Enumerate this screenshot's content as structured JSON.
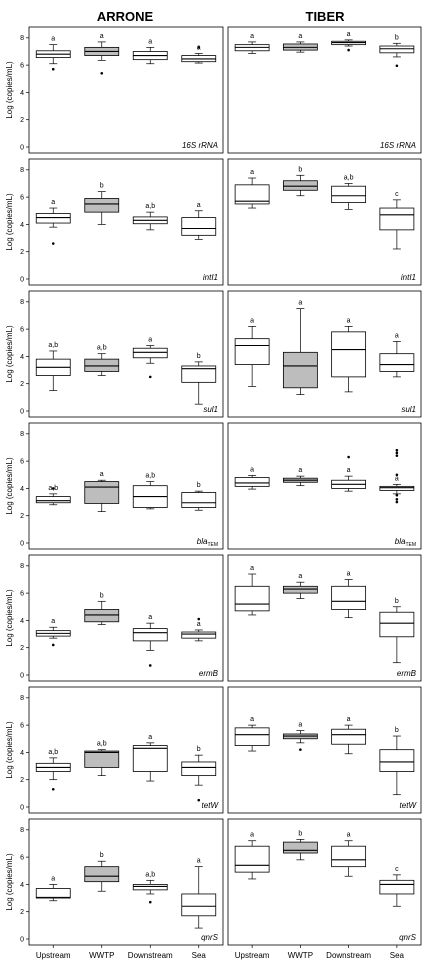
{
  "chart_data": {
    "type": "boxplot",
    "columns": [
      "ARRONE",
      "TIBER"
    ],
    "categories": [
      "Upstream",
      "WWTP",
      "Downstream",
      "Sea"
    ],
    "ylabel": "Log (copies/mL)",
    "ylim": [
      0,
      8.5
    ],
    "yticks": [
      0,
      2,
      4,
      6,
      8
    ],
    "fill_colors": [
      "#ffffff",
      "#bdbdbd",
      "#ffffff",
      "#ffffff"
    ],
    "rows": [
      {
        "gene": "16S rRNA",
        "panels": [
          {
            "site": "ARRONE",
            "boxes": [
              {
                "min": 6.1,
                "q1": 6.55,
                "median": 6.8,
                "q3": 7.05,
                "max": 7.5,
                "outliers": [
                  5.7
                ],
                "letter": "a"
              },
              {
                "min": 6.35,
                "q1": 6.7,
                "median": 7.0,
                "q3": 7.3,
                "max": 7.7,
                "outliers": [
                  5.4
                ],
                "letter": "a"
              },
              {
                "min": 6.1,
                "q1": 6.4,
                "median": 6.7,
                "q3": 7.0,
                "max": 7.3,
                "outliers": [],
                "letter": "a"
              },
              {
                "min": 6.15,
                "q1": 6.25,
                "median": 6.45,
                "q3": 6.7,
                "max": 6.85,
                "outliers": [
                  7.3
                ],
                "letter": "a"
              }
            ]
          },
          {
            "site": "TIBER",
            "boxes": [
              {
                "min": 6.85,
                "q1": 7.05,
                "median": 7.3,
                "q3": 7.5,
                "max": 7.7,
                "outliers": [],
                "letter": "a"
              },
              {
                "min": 6.95,
                "q1": 7.1,
                "median": 7.3,
                "q3": 7.55,
                "max": 7.7,
                "outliers": [],
                "letter": "a"
              },
              {
                "min": 7.4,
                "q1": 7.5,
                "median": 7.65,
                "q3": 7.75,
                "max": 7.85,
                "outliers": [
                  7.1
                ],
                "letter": "a"
              },
              {
                "min": 6.6,
                "q1": 6.9,
                "median": 7.2,
                "q3": 7.4,
                "max": 7.6,
                "outliers": [
                  5.95
                ],
                "letter": "b"
              }
            ]
          }
        ]
      },
      {
        "gene": "intI1",
        "panels": [
          {
            "site": "ARRONE",
            "boxes": [
              {
                "min": 3.8,
                "q1": 4.1,
                "median": 4.5,
                "q3": 4.8,
                "max": 5.2,
                "outliers": [
                  2.6
                ],
                "letter": "a"
              },
              {
                "min": 4.0,
                "q1": 4.9,
                "median": 5.5,
                "q3": 5.9,
                "max": 6.4,
                "outliers": [],
                "letter": "b"
              },
              {
                "min": 3.6,
                "q1": 4.05,
                "median": 4.3,
                "q3": 4.55,
                "max": 4.9,
                "outliers": [],
                "letter": "a,b"
              },
              {
                "min": 2.9,
                "q1": 3.2,
                "median": 3.7,
                "q3": 4.5,
                "max": 5.0,
                "outliers": [],
                "letter": "a"
              }
            ]
          },
          {
            "site": "TIBER",
            "boxes": [
              {
                "min": 5.2,
                "q1": 5.5,
                "median": 5.7,
                "q3": 6.9,
                "max": 7.4,
                "outliers": [],
                "letter": "a"
              },
              {
                "min": 6.1,
                "q1": 6.5,
                "median": 6.8,
                "q3": 7.2,
                "max": 7.6,
                "outliers": [],
                "letter": "b"
              },
              {
                "min": 5.1,
                "q1": 5.6,
                "median": 6.1,
                "q3": 6.8,
                "max": 7.0,
                "outliers": [],
                "letter": "a,b"
              },
              {
                "min": 2.2,
                "q1": 3.6,
                "median": 4.7,
                "q3": 5.2,
                "max": 5.8,
                "outliers": [],
                "letter": "c"
              }
            ]
          }
        ]
      },
      {
        "gene": "sul1",
        "panels": [
          {
            "site": "ARRONE",
            "boxes": [
              {
                "min": 1.5,
                "q1": 2.6,
                "median": 3.2,
                "q3": 3.8,
                "max": 4.4,
                "outliers": [],
                "letter": "a,b"
              },
              {
                "min": 2.6,
                "q1": 2.9,
                "median": 3.3,
                "q3": 3.8,
                "max": 4.2,
                "outliers": [],
                "letter": "a,b"
              },
              {
                "min": 3.5,
                "q1": 3.9,
                "median": 4.3,
                "q3": 4.6,
                "max": 4.8,
                "outliers": [
                  2.5
                ],
                "letter": "a"
              },
              {
                "min": 0.5,
                "q1": 2.1,
                "median": 3.1,
                "q3": 3.3,
                "max": 3.6,
                "outliers": [],
                "letter": "b"
              }
            ]
          },
          {
            "site": "TIBER",
            "boxes": [
              {
                "min": 1.8,
                "q1": 3.4,
                "median": 4.8,
                "q3": 5.3,
                "max": 6.2,
                "outliers": [],
                "letter": "a"
              },
              {
                "min": 1.2,
                "q1": 1.7,
                "median": 3.3,
                "q3": 4.3,
                "max": 7.5,
                "outliers": [],
                "letter": "a"
              },
              {
                "min": 1.4,
                "q1": 2.5,
                "median": 4.5,
                "q3": 5.8,
                "max": 6.2,
                "outliers": [],
                "letter": "a"
              },
              {
                "min": 2.5,
                "q1": 2.9,
                "median": 3.4,
                "q3": 4.2,
                "max": 5.1,
                "outliers": [],
                "letter": "a"
              }
            ]
          }
        ]
      },
      {
        "gene": "bla",
        "gene_sub": "TEM",
        "panels": [
          {
            "site": "ARRONE",
            "boxes": [
              {
                "min": 2.8,
                "q1": 2.95,
                "median": 3.1,
                "q3": 3.4,
                "max": 3.6,
                "outliers": [
                  4.0
                ],
                "letter": "a,b"
              },
              {
                "min": 2.3,
                "q1": 2.9,
                "median": 4.1,
                "q3": 4.5,
                "max": 4.6,
                "outliers": [],
                "letter": "a"
              },
              {
                "min": 2.5,
                "q1": 2.6,
                "median": 3.4,
                "q3": 4.2,
                "max": 4.5,
                "outliers": [],
                "letter": "a,b"
              },
              {
                "min": 2.4,
                "q1": 2.6,
                "median": 2.95,
                "q3": 3.7,
                "max": 3.8,
                "outliers": [],
                "letter": "b"
              }
            ]
          },
          {
            "site": "TIBER",
            "boxes": [
              {
                "min": 3.95,
                "q1": 4.15,
                "median": 4.4,
                "q3": 4.8,
                "max": 4.95,
                "outliers": [],
                "letter": "a"
              },
              {
                "min": 4.2,
                "q1": 4.45,
                "median": 4.6,
                "q3": 4.75,
                "max": 4.9,
                "outliers": [],
                "letter": "a"
              },
              {
                "min": 3.8,
                "q1": 4.0,
                "median": 4.3,
                "q3": 4.6,
                "max": 4.9,
                "outliers": [
                  6.3
                ],
                "letter": "a"
              },
              {
                "min": 3.6,
                "q1": 3.85,
                "median": 4.05,
                "q3": 4.15,
                "max": 4.3,
                "outliers": [
                  6.8,
                  6.6,
                  6.4,
                  5.0,
                  3.5,
                  3.2,
                  3.0
                ],
                "letter": "a"
              }
            ]
          }
        ]
      },
      {
        "gene": "ermB",
        "panels": [
          {
            "site": "ARRONE",
            "boxes": [
              {
                "min": 2.7,
                "q1": 2.85,
                "median": 3.05,
                "q3": 3.25,
                "max": 3.5,
                "outliers": [
                  2.2
                ],
                "letter": "a"
              },
              {
                "min": 3.7,
                "q1": 3.9,
                "median": 4.4,
                "q3": 4.8,
                "max": 5.4,
                "outliers": [],
                "letter": "b"
              },
              {
                "min": 1.8,
                "q1": 2.5,
                "median": 3.1,
                "q3": 3.4,
                "max": 3.8,
                "outliers": [
                  0.7
                ],
                "letter": "a"
              },
              {
                "min": 2.5,
                "q1": 2.7,
                "median": 3.0,
                "q3": 3.15,
                "max": 3.3,
                "outliers": [
                  4.1
                ],
                "letter": "a"
              }
            ]
          },
          {
            "site": "TIBER",
            "boxes": [
              {
                "min": 4.4,
                "q1": 4.7,
                "median": 5.2,
                "q3": 6.5,
                "max": 7.4,
                "outliers": [],
                "letter": "a"
              },
              {
                "min": 5.6,
                "q1": 6.0,
                "median": 6.3,
                "q3": 6.5,
                "max": 6.8,
                "outliers": [],
                "letter": "a"
              },
              {
                "min": 4.2,
                "q1": 4.8,
                "median": 5.4,
                "q3": 6.5,
                "max": 7.0,
                "outliers": [],
                "letter": "a"
              },
              {
                "min": 0.9,
                "q1": 2.8,
                "median": 3.8,
                "q3": 4.6,
                "max": 5.0,
                "outliers": [],
                "letter": "b"
              }
            ]
          }
        ]
      },
      {
        "gene": "tetW",
        "panels": [
          {
            "site": "ARRONE",
            "boxes": [
              {
                "min": 2.0,
                "q1": 2.6,
                "median": 2.9,
                "q3": 3.2,
                "max": 3.6,
                "outliers": [
                  1.3
                ],
                "letter": "a,b"
              },
              {
                "min": 2.3,
                "q1": 2.9,
                "median": 4.0,
                "q3": 4.1,
                "max": 4.2,
                "outliers": [],
                "letter": "a,b"
              },
              {
                "min": 1.9,
                "q1": 2.6,
                "median": 4.3,
                "q3": 4.5,
                "max": 4.7,
                "outliers": [],
                "letter": "a"
              },
              {
                "min": 1.6,
                "q1": 2.3,
                "median": 2.9,
                "q3": 3.3,
                "max": 3.8,
                "outliers": [
                  0.5
                ],
                "letter": "b"
              }
            ]
          },
          {
            "site": "TIBER",
            "boxes": [
              {
                "min": 4.1,
                "q1": 4.5,
                "median": 5.3,
                "q3": 5.8,
                "max": 6.0,
                "outliers": [],
                "letter": "a"
              },
              {
                "min": 4.7,
                "q1": 5.0,
                "median": 5.2,
                "q3": 5.35,
                "max": 5.6,
                "outliers": [
                  4.2
                ],
                "letter": "a"
              },
              {
                "min": 3.9,
                "q1": 4.6,
                "median": 5.3,
                "q3": 5.7,
                "max": 6.0,
                "outliers": [],
                "letter": "a"
              },
              {
                "min": 0.9,
                "q1": 2.6,
                "median": 3.3,
                "q3": 4.2,
                "max": 5.2,
                "outliers": [],
                "letter": "b"
              }
            ]
          }
        ]
      },
      {
        "gene": "qnrS",
        "panels": [
          {
            "site": "ARRONE",
            "boxes": [
              {
                "min": 2.8,
                "q1": 3.0,
                "median": 3.05,
                "q3": 3.7,
                "max": 4.0,
                "outliers": [],
                "letter": "a"
              },
              {
                "min": 3.5,
                "q1": 4.2,
                "median": 4.6,
                "q3": 5.3,
                "max": 5.7,
                "outliers": [],
                "letter": "b"
              },
              {
                "min": 3.3,
                "q1": 3.6,
                "median": 3.85,
                "q3": 4.0,
                "max": 4.3,
                "outliers": [
                  2.7
                ],
                "letter": "a,b"
              },
              {
                "min": 0.8,
                "q1": 1.7,
                "median": 2.4,
                "q3": 3.3,
                "max": 5.3,
                "outliers": [],
                "letter": "a"
              }
            ]
          },
          {
            "site": "TIBER",
            "boxes": [
              {
                "min": 4.4,
                "q1": 4.9,
                "median": 5.4,
                "q3": 6.8,
                "max": 7.2,
                "outliers": [],
                "letter": "a"
              },
              {
                "min": 5.8,
                "q1": 6.3,
                "median": 6.5,
                "q3": 7.1,
                "max": 7.3,
                "outliers": [],
                "letter": "b"
              },
              {
                "min": 4.6,
                "q1": 5.3,
                "median": 5.8,
                "q3": 6.8,
                "max": 7.2,
                "outliers": [],
                "letter": "a"
              },
              {
                "min": 2.4,
                "q1": 3.3,
                "median": 4.0,
                "q3": 4.3,
                "max": 4.7,
                "outliers": [],
                "letter": "c"
              }
            ]
          }
        ]
      }
    ]
  }
}
